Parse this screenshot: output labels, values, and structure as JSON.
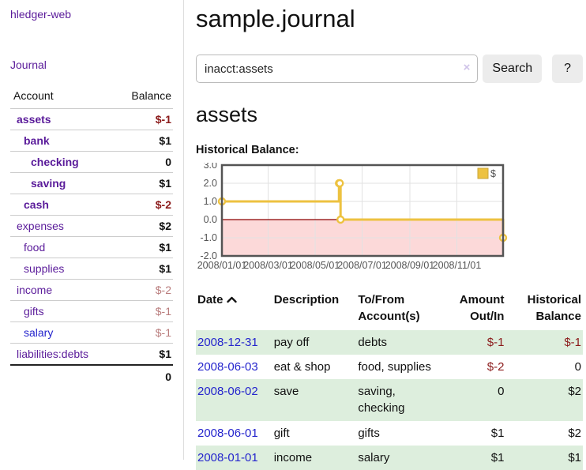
{
  "app": {
    "brand": "hledger-web"
  },
  "sidebar": {
    "journal_link": "Journal",
    "accounts_table": {
      "headers": {
        "account": "Account",
        "balance": "Balance"
      },
      "rows": [
        {
          "account": "assets",
          "balance": "$-1"
        },
        {
          "account": "bank",
          "balance": "$1"
        },
        {
          "account": "checking",
          "balance": "0"
        },
        {
          "account": "saving",
          "balance": "$1"
        },
        {
          "account": "cash",
          "balance": "$-2"
        },
        {
          "account": "expenses",
          "balance": "$2"
        },
        {
          "account": "food",
          "balance": "$1"
        },
        {
          "account": "supplies",
          "balance": "$1"
        },
        {
          "account": "income",
          "balance": "$-2"
        },
        {
          "account": "gifts",
          "balance": "$-1"
        },
        {
          "account": "salary",
          "balance": "$-1"
        },
        {
          "account": "liabilities:debts",
          "balance": "$1"
        }
      ],
      "total": "0"
    }
  },
  "main": {
    "title": "sample.journal",
    "search": {
      "value": "inacct:assets",
      "clear_icon": "×",
      "search_button": "Search",
      "help_button": "?"
    },
    "account_heading": "assets",
    "section_label": "Historical Balance:"
  },
  "chart_data": {
    "type": "line",
    "title": "Historical Balance:",
    "series": [
      {
        "name": "$",
        "color": "#edc240",
        "step": true,
        "points": [
          {
            "date": "2008-01-01",
            "value": 1
          },
          {
            "date": "2008-06-01",
            "value": 2
          },
          {
            "date": "2008-06-02",
            "value": 2
          },
          {
            "date": "2008-06-03",
            "value": 0
          },
          {
            "date": "2008-12-31",
            "value": -1
          }
        ]
      }
    ],
    "ylim": [
      -2,
      3
    ],
    "yticks": [
      "3.0",
      "2.0",
      "1.0",
      "0.0",
      "-1.0",
      "-2.0"
    ],
    "xticks": [
      "2008/01/01",
      "2008/03/01",
      "2008/05/01",
      "2008/07/01",
      "2008/09/01",
      "2008/11/01"
    ],
    "xrange": [
      "2008-01-01",
      "2008-12-31"
    ],
    "legend": {
      "label": "$",
      "position": "top-right"
    },
    "grid": true,
    "negative_region_color": "#fcd9d9",
    "zero_line_color": "#8b0000"
  },
  "register": {
    "headers": {
      "date": "Date",
      "description": "Description",
      "accounts": "To/From Account(s)",
      "amount": "Amount Out/In",
      "balance": "Historical Balance"
    },
    "rows": [
      {
        "date": "2008-12-31",
        "description": "pay off",
        "accounts": "debts",
        "amount": "$-1",
        "balance": "$-1"
      },
      {
        "date": "2008-06-03",
        "description": "eat & shop",
        "accounts": "food, supplies",
        "amount": "$-2",
        "balance": "0"
      },
      {
        "date": "2008-06-02",
        "description": "save",
        "accounts": "saving, checking",
        "amount": "0",
        "balance": "$2"
      },
      {
        "date": "2008-06-01",
        "description": "gift",
        "accounts": "gifts",
        "amount": "$1",
        "balance": "$2"
      },
      {
        "date": "2008-01-01",
        "description": "income",
        "accounts": "salary",
        "amount": "$1",
        "balance": "$1"
      }
    ]
  },
  "colors": {
    "accent_purple": "#5a1b9a",
    "link_blue": "#2525cd",
    "negative_red": "#8b1a1a",
    "negative_soft_red": "#b97c7c",
    "row_green": "#ddeedd",
    "chart_gold": "#edc240"
  }
}
